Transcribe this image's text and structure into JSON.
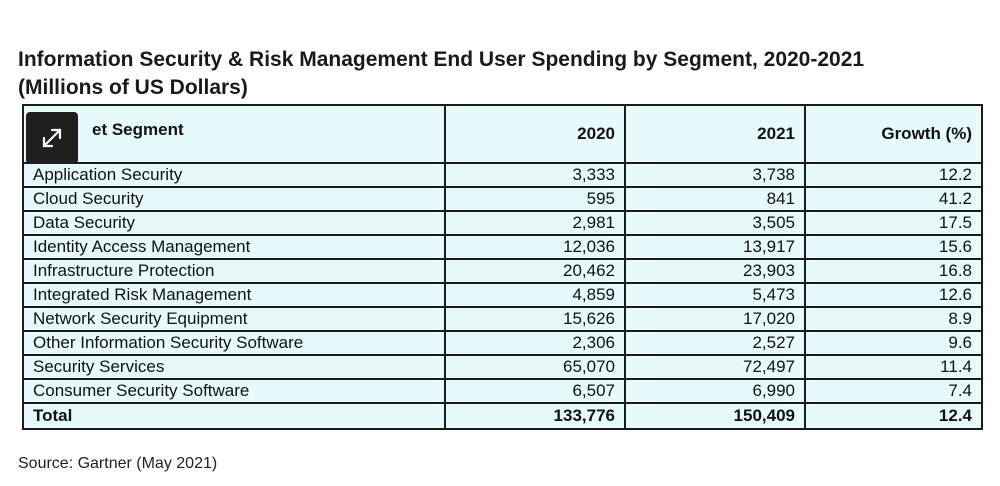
{
  "title_line1": "Information Security & Risk Management End User Spending by Segment, 2020-2021",
  "title_line2": "(Millions of US Dollars)",
  "source": "Source: Gartner (May 2021)",
  "icons": {
    "overlay": "expand-icon"
  },
  "colors": {
    "table_bg": "#e6fafc",
    "border": "#1b1b1b",
    "overlay": "#1f1f1f"
  },
  "chart_data": {
    "type": "table",
    "columns": [
      "Market Segment",
      "2020",
      "2021",
      "Growth (%)"
    ],
    "header_visible": {
      "segment": "et Segment"
    },
    "rows": [
      {
        "segment": "Application Security",
        "y2020": "3,333",
        "y2021": "3,738",
        "growth": "12.2"
      },
      {
        "segment": "Cloud Security",
        "y2020": "595",
        "y2021": "841",
        "growth": "41.2"
      },
      {
        "segment": "Data Security",
        "y2020": "2,981",
        "y2021": "3,505",
        "growth": "17.5"
      },
      {
        "segment": "Identity Access Management",
        "y2020": "12,036",
        "y2021": "13,917",
        "growth": "15.6"
      },
      {
        "segment": "Infrastructure Protection",
        "y2020": "20,462",
        "y2021": "23,903",
        "growth": "16.8"
      },
      {
        "segment": "Integrated Risk Management",
        "y2020": "4,859",
        "y2021": "5,473",
        "growth": "12.6"
      },
      {
        "segment": "Network Security Equipment",
        "y2020": "15,626",
        "y2021": "17,020",
        "growth": "8.9"
      },
      {
        "segment": "Other Information Security Software",
        "y2020": "2,306",
        "y2021": "2,527",
        "growth": "9.6"
      },
      {
        "segment": "Security Services",
        "y2020": "65,070",
        "y2021": "72,497",
        "growth": "11.4"
      },
      {
        "segment": "Consumer Security Software",
        "y2020": "6,507",
        "y2021": "6,990",
        "growth": "7.4"
      }
    ],
    "total": {
      "segment": "Total",
      "y2020": "133,776",
      "y2021": "150,409",
      "growth": "12.4"
    }
  }
}
